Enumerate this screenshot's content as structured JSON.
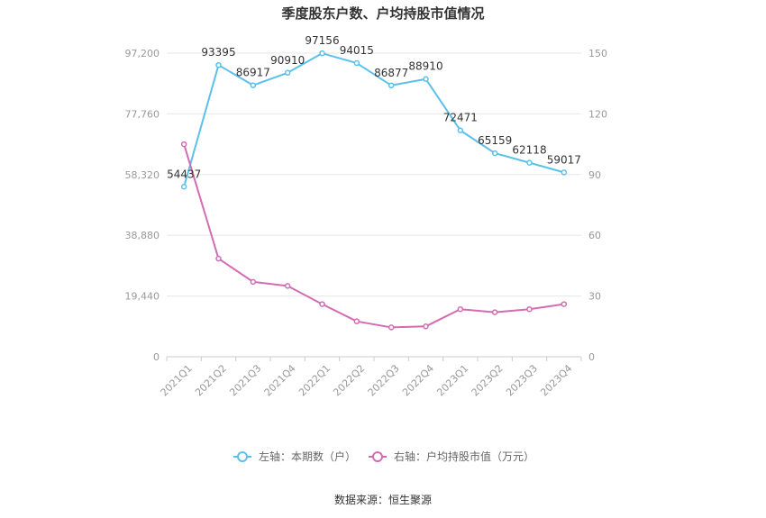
{
  "title": "季度股东户数、户均持股市值情况",
  "source": "数据来源：恒生聚源",
  "chart_data": {
    "type": "line",
    "title": "季度股东户数、户均持股市值情况",
    "categories": [
      "2021Q1",
      "2021Q2",
      "2021Q3",
      "2021Q4",
      "2022Q1",
      "2022Q2",
      "2022Q3",
      "2022Q4",
      "2023Q1",
      "2023Q2",
      "2023Q3",
      "2023Q4"
    ],
    "left_axis": {
      "ylim": [
        0,
        97200
      ],
      "ticks": [
        0,
        19440,
        38880,
        58320,
        77760,
        97200
      ],
      "tick_labels": [
        "0",
        "19,440",
        "38,880",
        "58,320",
        "77,760",
        "97,200"
      ]
    },
    "right_axis": {
      "ylim": [
        0,
        150
      ],
      "ticks": [
        0,
        30,
        60,
        90,
        120,
        150
      ],
      "tick_labels": [
        "0",
        "30",
        "60",
        "90",
        "120",
        "150"
      ]
    },
    "series": [
      {
        "name": "左轴：本期数（户）",
        "axis": "left",
        "color": "#5bc0eb",
        "values": [
          54437,
          93395,
          86917,
          90910,
          97156,
          94015,
          86877,
          88910,
          72471,
          65159,
          62118,
          59017
        ],
        "labels": [
          "54437",
          "93395",
          "86917",
          "90910",
          "97156",
          "94015",
          "86877",
          "88910",
          "72471",
          "65159",
          "62118",
          "59017"
        ]
      },
      {
        "name": "右轴：户均持股市值（万元）",
        "axis": "right",
        "color": "#d36cb3",
        "values": [
          105,
          48.5,
          37,
          35,
          26,
          17.5,
          14.5,
          15,
          23.5,
          22,
          23.5,
          26
        ]
      }
    ],
    "grid": true,
    "legend_position": "bottom"
  }
}
